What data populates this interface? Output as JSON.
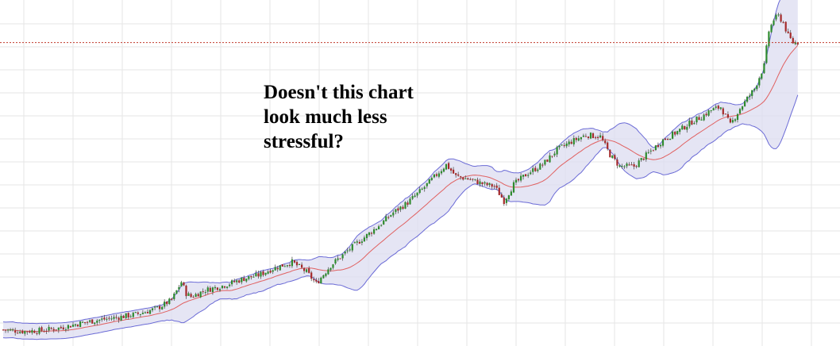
{
  "annotation": {
    "lines": [
      "Doesn't this chart",
      "look much less",
      "stressful?"
    ]
  },
  "colors": {
    "background": "#ffffff",
    "grid": "#e6e6e6",
    "up_candle": "#2e8b2e",
    "down_candle": "#a52a2a",
    "wick": "#555555",
    "band_fill": "#dcdcf0",
    "band_line": "#6b6bd6",
    "middle_band": "#e06060",
    "reference_line": "#c0392b"
  },
  "chart_data": {
    "type": "candlestick",
    "indicator": "bollinger-bands",
    "grid": true,
    "reference_line_value": 0.9,
    "x_range": [
      0,
      335
    ],
    "y_range": [
      0,
      1
    ],
    "price_path": [
      [
        0,
        0.03
      ],
      [
        8,
        0.025
      ],
      [
        16,
        0.028
      ],
      [
        24,
        0.036
      ],
      [
        32,
        0.05
      ],
      [
        40,
        0.06
      ],
      [
        48,
        0.068
      ],
      [
        56,
        0.078
      ],
      [
        64,
        0.095
      ],
      [
        70,
        0.12
      ],
      [
        74,
        0.175
      ],
      [
        76,
        0.14
      ],
      [
        78,
        0.13
      ],
      [
        84,
        0.15
      ],
      [
        92,
        0.165
      ],
      [
        100,
        0.185
      ],
      [
        106,
        0.195
      ],
      [
        112,
        0.215
      ],
      [
        120,
        0.235
      ],
      [
        126,
        0.205
      ],
      [
        130,
        0.17
      ],
      [
        136,
        0.225
      ],
      [
        144,
        0.275
      ],
      [
        150,
        0.31
      ],
      [
        156,
        0.345
      ],
      [
        162,
        0.385
      ],
      [
        168,
        0.415
      ],
      [
        174,
        0.455
      ],
      [
        180,
        0.5
      ],
      [
        184,
        0.53
      ],
      [
        188,
        0.495
      ],
      [
        194,
        0.485
      ],
      [
        200,
        0.47
      ],
      [
        204,
        0.465
      ],
      [
        208,
        0.42
      ],
      [
        212,
        0.47
      ],
      [
        218,
        0.505
      ],
      [
        224,
        0.53
      ],
      [
        230,
        0.575
      ],
      [
        236,
        0.6
      ],
      [
        242,
        0.62
      ],
      [
        248,
        0.615
      ],
      [
        252,
        0.56
      ],
      [
        256,
        0.525
      ],
      [
        262,
        0.525
      ],
      [
        268,
        0.565
      ],
      [
        274,
        0.605
      ],
      [
        280,
        0.63
      ],
      [
        286,
        0.66
      ],
      [
        290,
        0.675
      ],
      [
        294,
        0.695
      ],
      [
        298,
        0.705
      ],
      [
        302,
        0.65
      ],
      [
        306,
        0.7
      ],
      [
        312,
        0.76
      ],
      [
        316,
        0.83
      ],
      [
        318,
        0.935
      ],
      [
        320,
        0.97
      ],
      [
        322,
        0.98
      ],
      [
        324,
        0.96
      ],
      [
        326,
        0.92
      ],
      [
        328,
        0.9
      ],
      [
        330,
        0.9
      ]
    ]
  }
}
